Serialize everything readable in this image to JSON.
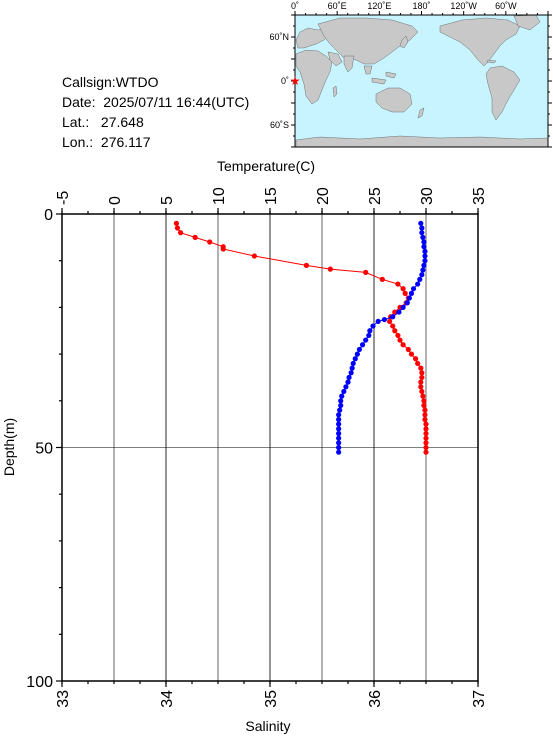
{
  "info": {
    "callsign": "Callsign:WTDO",
    "date": "Date:  2025/07/11 16:44(UTC)",
    "lat": "Lat.:   27.648",
    "lon": "Lon.:  276.117"
  },
  "map": {
    "top_labels": [
      "0˚",
      "60˚E",
      "120˚E",
      "180˚",
      "120˚W",
      "60˚W"
    ],
    "left_labels": [
      "60˚N",
      "0˚",
      "60˚S"
    ],
    "ocean_color": "#c8f4ff",
    "land_color": "#c8c8c8",
    "marker_color": "#ff0000",
    "marker_symbol": "star-icon"
  },
  "chart_data": {
    "type": "line",
    "title": "",
    "ylabel": "Depth(m)",
    "ylim": [
      100,
      0
    ],
    "yticks": [
      "0",
      "50",
      "100"
    ],
    "top_axis": {
      "label": "Temperature(C)",
      "range": [
        -5,
        35
      ],
      "ticks": [
        "-5",
        "0",
        "5",
        "10",
        "15",
        "20",
        "25",
        "30",
        "35"
      ]
    },
    "bottom_axis": {
      "label": "Salinity",
      "range": [
        33,
        37
      ],
      "ticks": [
        "33",
        "34",
        "35",
        "36",
        "37"
      ]
    },
    "grid": true,
    "series": [
      {
        "axis": "temperature",
        "color": "#ff0000",
        "points": [
          [
            6.0,
            2
          ],
          [
            6.1,
            3
          ],
          [
            6.4,
            4
          ],
          [
            7.8,
            5
          ],
          [
            9.2,
            6
          ],
          [
            10.5,
            7
          ],
          [
            10.5,
            7.5
          ],
          [
            13.5,
            9
          ],
          [
            18.5,
            11
          ],
          [
            20.8,
            11.8
          ],
          [
            24.2,
            12.5
          ],
          [
            25.8,
            14
          ],
          [
            27.3,
            15
          ],
          [
            27.8,
            16
          ],
          [
            28.0,
            17
          ],
          [
            28.3,
            18
          ],
          [
            28.1,
            19
          ],
          [
            27.5,
            20
          ],
          [
            27.0,
            21
          ],
          [
            26.6,
            22
          ],
          [
            26.5,
            23
          ],
          [
            26.8,
            24
          ],
          [
            27.0,
            25
          ],
          [
            27.3,
            26
          ],
          [
            27.5,
            27
          ],
          [
            27.8,
            28
          ],
          [
            28.3,
            29
          ],
          [
            28.6,
            30
          ],
          [
            29.0,
            31
          ],
          [
            29.2,
            32
          ],
          [
            29.5,
            33
          ],
          [
            29.6,
            34
          ],
          [
            29.6,
            35
          ],
          [
            29.5,
            36
          ],
          [
            29.5,
            37
          ],
          [
            29.6,
            38
          ],
          [
            29.7,
            39
          ],
          [
            29.8,
            40
          ],
          [
            29.8,
            41
          ],
          [
            29.9,
            42
          ],
          [
            29.9,
            43
          ],
          [
            29.9,
            44
          ],
          [
            30.0,
            45
          ],
          [
            30.0,
            46
          ],
          [
            30.0,
            47
          ],
          [
            30.0,
            48
          ],
          [
            30.0,
            49
          ],
          [
            30.0,
            50
          ],
          [
            30.0,
            51
          ]
        ]
      },
      {
        "axis": "salinity",
        "color": "#0000ff",
        "points": [
          [
            36.45,
            2
          ],
          [
            36.46,
            3
          ],
          [
            36.46,
            4
          ],
          [
            36.47,
            5
          ],
          [
            36.48,
            6
          ],
          [
            36.48,
            7
          ],
          [
            36.49,
            8
          ],
          [
            36.49,
            9
          ],
          [
            36.49,
            10
          ],
          [
            36.48,
            11
          ],
          [
            36.47,
            12
          ],
          [
            36.46,
            13
          ],
          [
            36.44,
            14
          ],
          [
            36.42,
            15
          ],
          [
            36.38,
            16
          ],
          [
            36.36,
            17
          ],
          [
            36.34,
            18
          ],
          [
            36.32,
            19
          ],
          [
            36.28,
            20
          ],
          [
            36.24,
            21
          ],
          [
            36.18,
            22
          ],
          [
            36.1,
            22.6
          ],
          [
            36.04,
            23
          ],
          [
            35.99,
            24
          ],
          [
            35.96,
            25
          ],
          [
            35.95,
            26
          ],
          [
            35.92,
            27
          ],
          [
            35.89,
            28
          ],
          [
            35.86,
            29
          ],
          [
            35.84,
            30
          ],
          [
            35.82,
            31
          ],
          [
            35.8,
            32
          ],
          [
            35.79,
            33
          ],
          [
            35.78,
            34
          ],
          [
            35.76,
            35
          ],
          [
            35.75,
            36
          ],
          [
            35.73,
            37
          ],
          [
            35.71,
            38
          ],
          [
            35.69,
            39
          ],
          [
            35.68,
            40
          ],
          [
            35.68,
            41
          ],
          [
            35.67,
            42
          ],
          [
            35.66,
            43
          ],
          [
            35.66,
            44
          ],
          [
            35.66,
            45
          ],
          [
            35.66,
            46
          ],
          [
            35.66,
            47
          ],
          [
            35.66,
            48
          ],
          [
            35.66,
            49
          ],
          [
            35.66,
            50
          ],
          [
            35.66,
            51
          ]
        ]
      }
    ]
  }
}
